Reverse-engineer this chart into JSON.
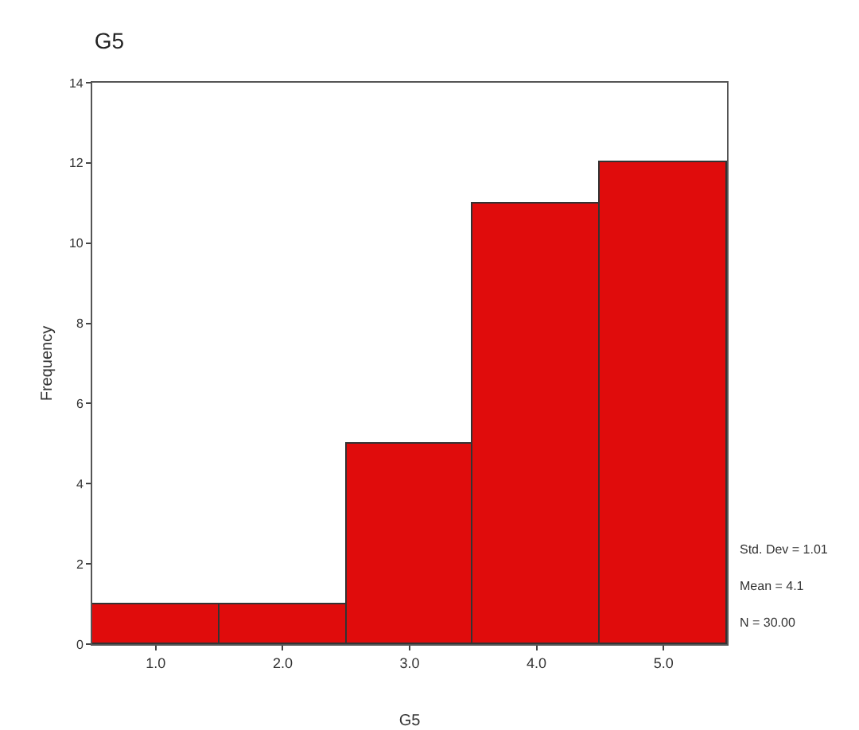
{
  "chart_data": {
    "type": "histogram",
    "title": "G5",
    "xlabel": "G5",
    "ylabel": "Frequency",
    "bins": [
      0.5,
      1.5,
      2.5,
      3.5,
      4.5,
      5.5
    ],
    "values": [
      1,
      1,
      5,
      11,
      12
    ],
    "color": "#e00c0c",
    "xlim": [
      0.5,
      5.5
    ],
    "xticks": [
      {
        "value": 1,
        "label": "1.0"
      },
      {
        "value": 2,
        "label": "2.0"
      },
      {
        "value": 3,
        "label": "3.0"
      },
      {
        "value": 4,
        "label": "4.0"
      },
      {
        "value": 5,
        "label": "5.0"
      }
    ],
    "ylim": [
      0,
      14
    ],
    "yticks": [
      0,
      2,
      4,
      6,
      8,
      10,
      12,
      14
    ],
    "grid": false,
    "annotations": [
      "Std. Dev = 1.01",
      "Mean = 4.1",
      "N = 30.00"
    ]
  }
}
